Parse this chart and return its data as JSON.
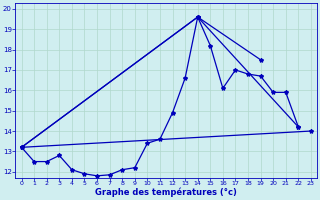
{
  "xlabel": "Graphe des températures (°c)",
  "xlim": [
    -0.5,
    23.5
  ],
  "ylim": [
    11.7,
    20.3
  ],
  "yticks": [
    12,
    13,
    14,
    15,
    16,
    17,
    18,
    19,
    20
  ],
  "xticks": [
    0,
    1,
    2,
    3,
    4,
    5,
    6,
    7,
    8,
    9,
    10,
    11,
    12,
    13,
    14,
    15,
    16,
    17,
    18,
    19,
    20,
    21,
    22,
    23
  ],
  "bg_color": "#d0eef0",
  "grid_color": "#b0d8cc",
  "line_color": "#0000bb",
  "line_width": 0.9,
  "marker_size": 3.0,
  "curves": [
    {
      "x": [
        0,
        1,
        2,
        3,
        4,
        5,
        6,
        7,
        8,
        9,
        10,
        11,
        12,
        13,
        14,
        15,
        16,
        17,
        18,
        19,
        20,
        21,
        22
      ],
      "y": [
        13.2,
        12.5,
        12.5,
        12.8,
        12.1,
        11.9,
        11.8,
        11.85,
        12.1,
        12.2,
        13.4,
        13.6,
        14.9,
        16.6,
        19.6,
        18.2,
        16.1,
        17.0,
        16.8,
        16.7,
        15.9,
        15.9,
        14.2
      ]
    },
    {
      "x": [
        0,
        23
      ],
      "y": [
        13.2,
        14.0
      ]
    },
    {
      "x": [
        0,
        14,
        19
      ],
      "y": [
        13.2,
        19.6,
        17.5
      ]
    },
    {
      "x": [
        0,
        14,
        22
      ],
      "y": [
        13.2,
        19.6,
        14.2
      ]
    }
  ]
}
